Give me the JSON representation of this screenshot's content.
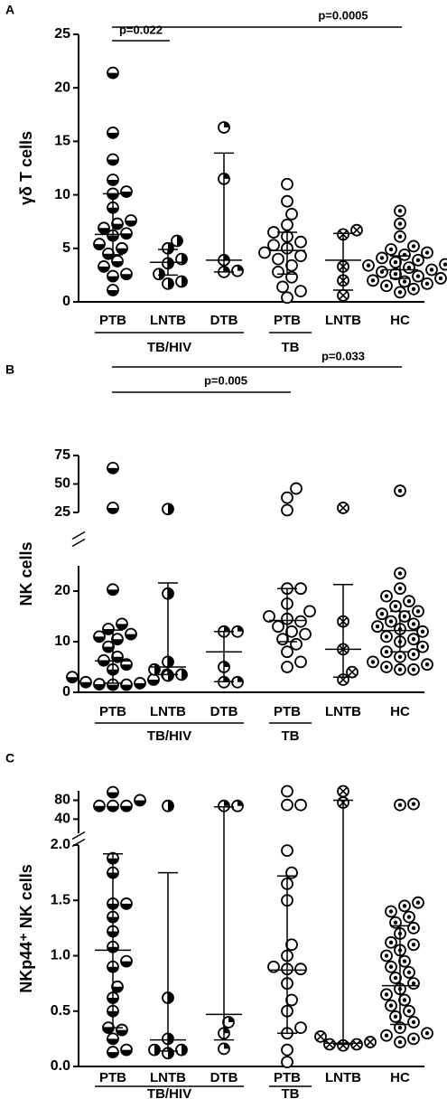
{
  "chart_data": [
    {
      "type": "dot",
      "panel": "A",
      "ylabel": "γδ T cells",
      "color": "#000000",
      "categories": [
        "PTB",
        "LNTB",
        "DTB",
        "PTB",
        "LNTB",
        "HC"
      ],
      "groups": [
        "TB/HIV",
        "TB"
      ],
      "comparisons": [
        "p=0.022",
        "p=0.0005"
      ],
      "markers": [
        "half-bottom",
        "half-right",
        "quarter",
        "open",
        "cross",
        "dot"
      ],
      "segments": [
        {
          "ylim": [
            0,
            25
          ],
          "yticks": [
            0,
            5,
            10,
            15,
            20,
            25
          ]
        }
      ],
      "points": [
        [
          21.4,
          15.8,
          13.3,
          11.4,
          10.3,
          10.1,
          8.8,
          7.6,
          7.3,
          6.9,
          6.4,
          6.2,
          5.4,
          5.0,
          4.5,
          3.8,
          3.3,
          2.4,
          1.1,
          2.6
        ],
        [
          5.7,
          5.0,
          4.0,
          3.6,
          2.6,
          1.7,
          1.9
        ],
        [
          16.3,
          11.5,
          3.9,
          2.8,
          2.9
        ],
        [
          11.0,
          9.4,
          8.2,
          7.2,
          6.5,
          6.1,
          5.6,
          5.3,
          4.6,
          4.3,
          4.0,
          3.4,
          2.8,
          2.3,
          1.4,
          1.0,
          0.4,
          5.0
        ],
        [
          6.7,
          6.3,
          3.3,
          2.0,
          0.6
        ],
        [
          8.5,
          7.3,
          6.1,
          5.2,
          4.9,
          4.6,
          4.4,
          4.1,
          3.9,
          3.7,
          3.4,
          3.2,
          3.0,
          2.8,
          2.6,
          2.4,
          2.2,
          1.9,
          1.7,
          1.5,
          1.2,
          0.9,
          3.5,
          2.0
        ]
      ],
      "medians": [
        6.3,
        3.7,
        3.9,
        4.8,
        3.9,
        3.0
      ],
      "q1": [
        4.4,
        2.5,
        2.8,
        2.6,
        1.1,
        2.2
      ],
      "q3": [
        10.1,
        4.9,
        13.9,
        6.5,
        6.4,
        4.3
      ]
    },
    {
      "type": "dot",
      "panel": "B",
      "ylabel": "NK cells",
      "color": "#000000",
      "categories": [
        "PTB",
        "LNTB",
        "DTB",
        "PTB",
        "LNTB",
        "HC"
      ],
      "groups": [
        "TB/HIV",
        "TB"
      ],
      "comparisons": [
        "p=0.005",
        "p=0.033"
      ],
      "markers": [
        "half-bottom",
        "half-right",
        "quarter",
        "open",
        "cross",
        "dot"
      ],
      "segments": [
        {
          "ylim": [
            0,
            25
          ],
          "yticks": [
            0,
            10,
            20
          ]
        },
        {
          "ylim": [
            25,
            75
          ],
          "yticks": [
            25,
            50,
            75
          ]
        }
      ],
      "points": [
        [
          64,
          29,
          20.3,
          13.5,
          12.5,
          11.5,
          11,
          10.5,
          9,
          7,
          6.3,
          5.5,
          4.5,
          3.5,
          3,
          2.5,
          2,
          1.8,
          1.5,
          1.5,
          1.6
        ],
        [
          28,
          19.5,
          6,
          4.5,
          3.5,
          3.3
        ],
        [
          12,
          12,
          5,
          2,
          2
        ],
        [
          46,
          38,
          27,
          20.5,
          20.5,
          17.5,
          16,
          15,
          14.5,
          13,
          12,
          11.5,
          10.5,
          9.5,
          8,
          6,
          5,
          14
        ],
        [
          29,
          14,
          8.5,
          4,
          2.5
        ],
        [
          44,
          23.5,
          20.5,
          19,
          18,
          16,
          15.5,
          15,
          14,
          13.5,
          13,
          12.5,
          12,
          11,
          10.5,
          10,
          9,
          8,
          7.5,
          7,
          6,
          5.5,
          5,
          4.5,
          4.5,
          17
        ]
      ],
      "medians": [
        6.2,
        5,
        8,
        14.2,
        8.5,
        12.2
      ],
      "q1": [
        1.8,
        3.5,
        2.1,
        10,
        3,
        8
      ],
      "q3": [
        12.3,
        21.6,
        12,
        20.5,
        21.3,
        16
      ]
    },
    {
      "type": "dot",
      "panel": "C",
      "ylabel": "NKp44⁺ NK cells",
      "color": "#000000",
      "categories": [
        "PTB",
        "LNTB",
        "DTB",
        "PTB",
        "LNTB",
        "HC"
      ],
      "groups": [
        "TB/HIV",
        "TB"
      ],
      "comparisons": [],
      "markers": [
        "half-bottom",
        "half-right",
        "quarter",
        "open",
        "cross",
        "dot"
      ],
      "segments": [
        {
          "ylim": [
            0,
            2
          ],
          "yticks": [
            {
              "value": 0,
              "label": "0.0"
            },
            0.5,
            {
              "value": 1,
              "label": "1.0"
            },
            1.5,
            {
              "value": 2,
              "label": "2.0"
            }
          ]
        },
        {
          "ylim": [
            10,
            100
          ],
          "yticks": [
            40,
            80
          ]
        }
      ],
      "points": [
        [
          97,
          80,
          68,
          68,
          68,
          1.75,
          1.47,
          1.47,
          1.35,
          1.22,
          1.08,
          0.95,
          0.9,
          0.72,
          0.62,
          0.5,
          0.35,
          0.33,
          0.25,
          0.15,
          0.13,
          1.88
        ],
        [
          68,
          0.62,
          0.25,
          0.15,
          0.15,
          0.12
        ],
        [
          68,
          68,
          0.4,
          0.3,
          0.16
        ],
        [
          99,
          70,
          70,
          1.95,
          1.75,
          1.65,
          1.5,
          1.1,
          1.0,
          0.88,
          0.88,
          0.6,
          0.5,
          0.35,
          0.3,
          0.15,
          0.04,
          0.9,
          0.75
        ],
        [
          99,
          75,
          0.27,
          0.22,
          0.2,
          0.2,
          0.19
        ],
        [
          72,
          70,
          1.48,
          1.45,
          1.4,
          1.35,
          1.3,
          1.25,
          1.2,
          1.12,
          1.05,
          1.0,
          0.95,
          0.9,
          0.85,
          0.8,
          0.75,
          0.7,
          0.65,
          0.6,
          0.55,
          0.5,
          0.45,
          0.4,
          0.35,
          0.3,
          0.25,
          0.22,
          0.28,
          1.1
        ]
      ],
      "medians": [
        1.05,
        0.24,
        0.47,
        0.87,
        0.21,
        0.73
      ],
      "q1": [
        0.35,
        0.14,
        0.24,
        0.3,
        0.2,
        0.38
      ],
      "q3": [
        1.92,
        1.75,
        66,
        1.72,
        80,
        1.27
      ]
    }
  ]
}
